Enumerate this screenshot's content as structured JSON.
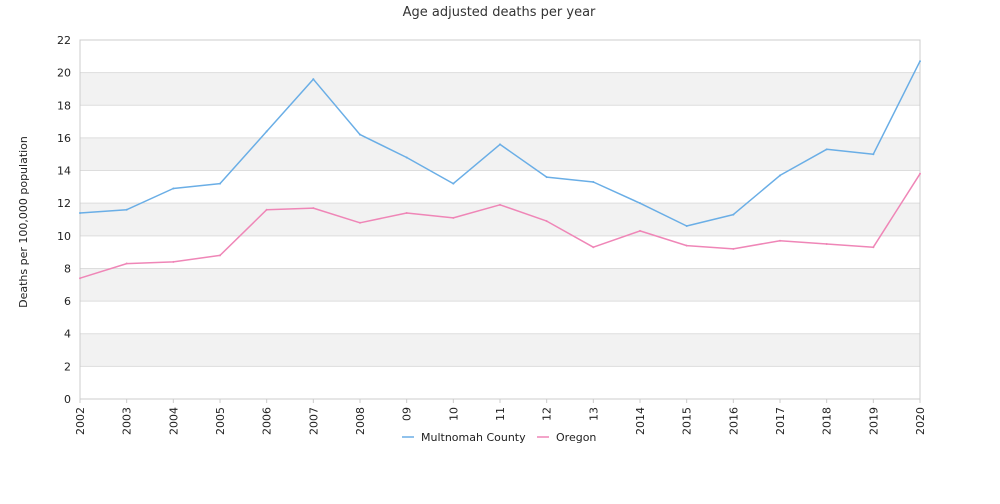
{
  "chart_data": {
    "type": "line",
    "title": "Age adjusted deaths per year",
    "xlabel": "",
    "ylabel": "Deaths per 100,000 population",
    "categories": [
      "2002",
      "2003",
      "2004",
      "2005",
      "2006",
      "2007",
      "2008",
      "09",
      "10",
      "11",
      "12",
      "13",
      "2014",
      "2015",
      "2016",
      "2017",
      "2018",
      "2019",
      "2020"
    ],
    "ylim": [
      0,
      22
    ],
    "yticks": [
      0,
      2,
      4,
      6,
      8,
      10,
      12,
      14,
      16,
      18,
      20,
      22
    ],
    "grid": true,
    "legend": "bottom-center",
    "series": [
      {
        "name": "Multnomah County",
        "color": "#6aaee6",
        "values": [
          11.4,
          11.6,
          12.9,
          13.2,
          16.4,
          19.6,
          16.2,
          14.8,
          13.2,
          15.6,
          13.6,
          13.3,
          12.0,
          10.6,
          11.3,
          13.7,
          15.3,
          15.0,
          20.7
        ]
      },
      {
        "name": "Oregon",
        "color": "#ef86b7",
        "values": [
          7.4,
          8.3,
          8.4,
          8.8,
          11.6,
          11.7,
          10.8,
          11.4,
          11.1,
          11.9,
          10.9,
          9.3,
          10.3,
          9.4,
          9.2,
          9.7,
          9.5,
          9.3,
          13.8
        ]
      }
    ]
  }
}
